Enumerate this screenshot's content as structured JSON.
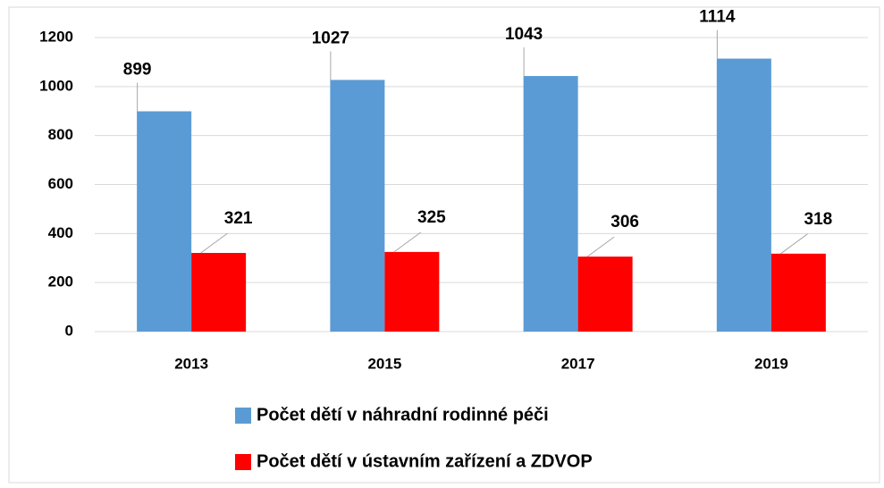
{
  "chart_data": {
    "type": "bar",
    "categories": [
      "2013",
      "2015",
      "2017",
      "2019"
    ],
    "series": [
      {
        "name": "Počet dětí v náhradní rodinné péči",
        "color": "#5b9bd5",
        "values": [
          899,
          1027,
          1043,
          1114
        ]
      },
      {
        "name": "Počet dětí v ústavním zařízení a ZDVOP",
        "color": "#ff0000",
        "values": [
          321,
          325,
          306,
          318
        ]
      }
    ],
    "ylim": [
      0,
      1200
    ],
    "yticks": [
      0,
      200,
      400,
      600,
      800,
      1000,
      1200
    ],
    "grid": true
  }
}
